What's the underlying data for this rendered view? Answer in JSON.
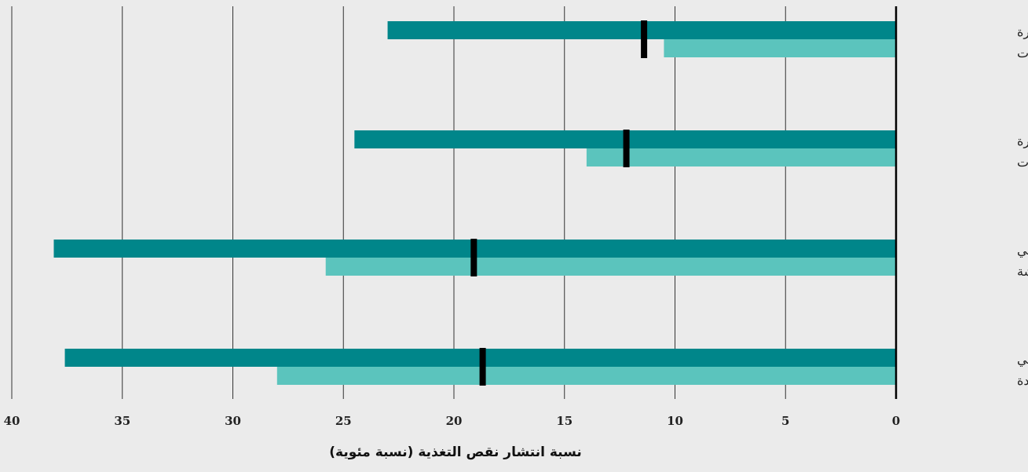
{
  "chart_data": {
    "type": "bar",
    "orientation": "horizontal",
    "x_direction": "reversed",
    "xlabel": "نسبة انتشار نقص التغذية (نسبة مئوية)",
    "xlim": [
      0,
      40
    ],
    "xticks": [
      0,
      5,
      10,
      15,
      20,
      25,
      30,
      35,
      40
    ],
    "grid": true,
    "categories": [
      [
        "البلدان غير المتأثرة",
        "بالنزاعات"
      ],
      [
        "البلدان المتأثرة",
        "بالنزاعات"
      ],
      [
        "البلدان التي تعاني",
        "حالة من الهشاشة"
      ],
      [
        "البلدان التي تعاني",
        "من أزمات ممتدة"
      ]
    ],
    "series": [
      {
        "values": [
          23.0,
          24.5,
          38.1,
          37.6
        ],
        "color": "#00868a"
      },
      {
        "values": [
          10.5,
          14.0,
          25.8,
          28.0
        ],
        "color": "#5bc4bd"
      }
    ],
    "markers": {
      "values": [
        11.4,
        12.2,
        19.1,
        18.7
      ],
      "color": "#000000"
    }
  }
}
